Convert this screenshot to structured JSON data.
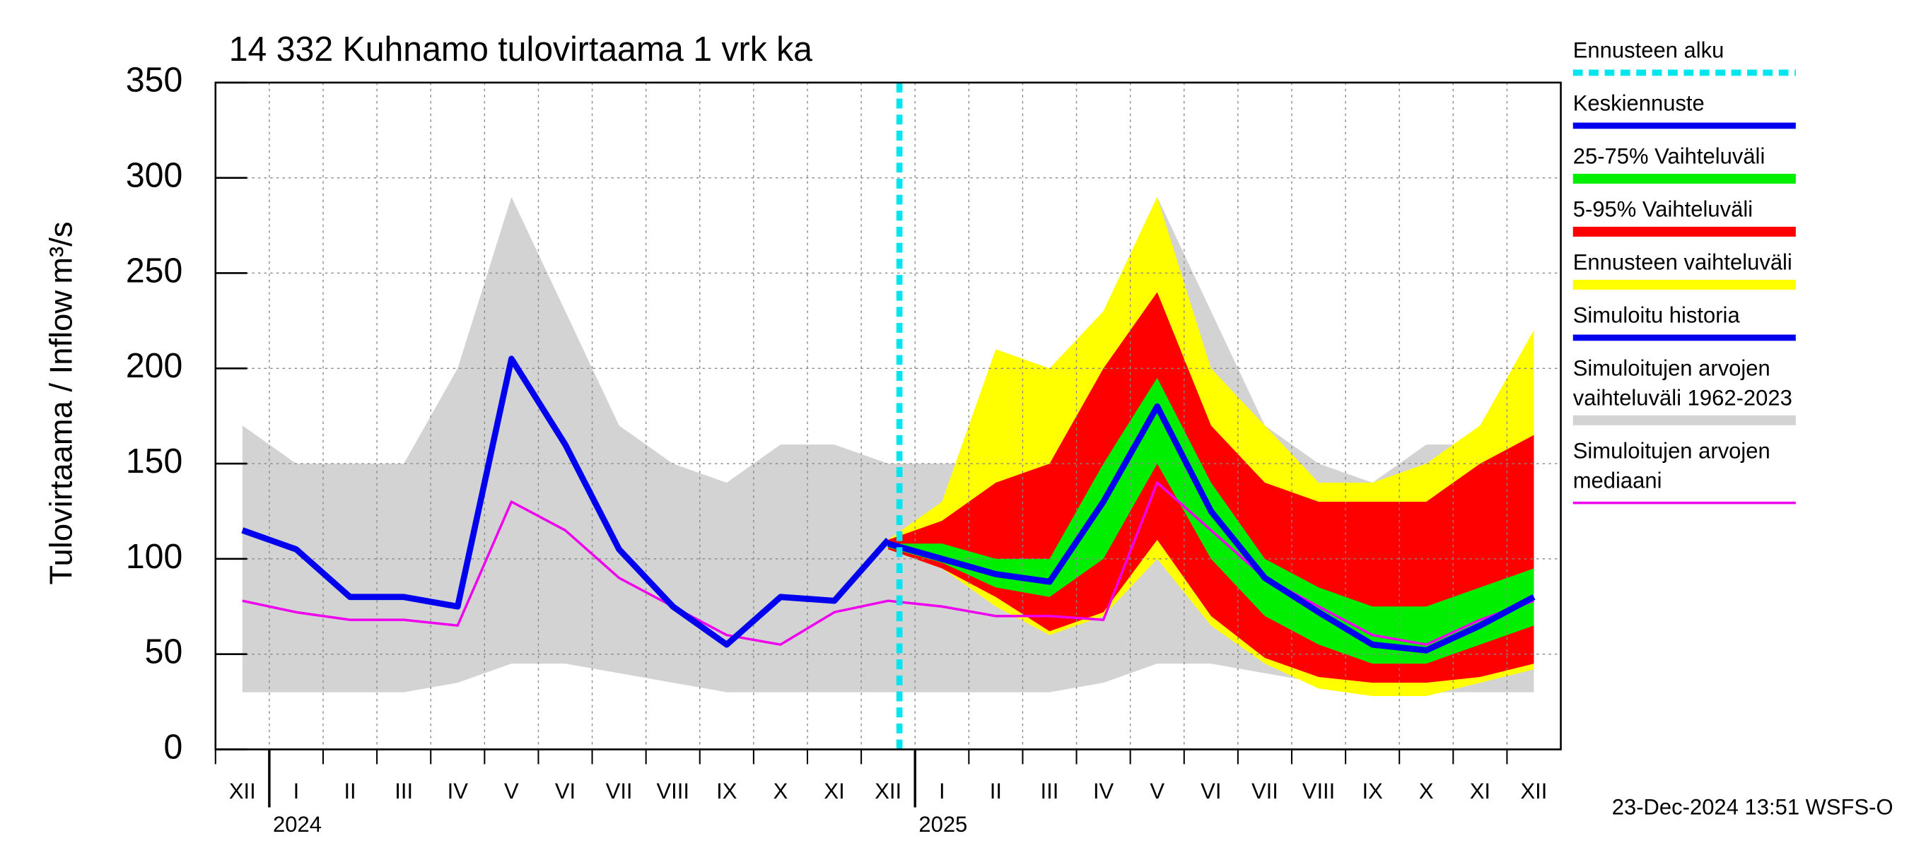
{
  "chart_data": {
    "type": "line",
    "title": "14 332 Kuhnamo tulovirtaama 1 vrk ka",
    "y_label": "Tulovirtaama / Inflow",
    "y_unit": "m³/s",
    "footer": "23-Dec-2024 13:51 WSFS-O",
    "x": [
      "2023-12",
      "2024-01",
      "2024-02",
      "2024-03",
      "2024-04",
      "2024-05",
      "2024-06",
      "2024-07",
      "2024-08",
      "2024-09",
      "2024-10",
      "2024-11",
      "2024-12",
      "2025-01",
      "2025-02",
      "2025-03",
      "2025-04",
      "2025-05",
      "2025-06",
      "2025-07",
      "2025-08",
      "2025-09",
      "2025-10",
      "2025-11",
      "2025-12"
    ],
    "month_labels": [
      "XII",
      "I",
      "II",
      "III",
      "IV",
      "V",
      "VI",
      "VII",
      "VIII",
      "IX",
      "X",
      "XI",
      "XII",
      "I",
      "II",
      "III",
      "IV",
      "V",
      "VI",
      "VII",
      "VIII",
      "IX",
      "X",
      "XI",
      "XII"
    ],
    "year_labels": [
      null,
      "2024",
      null,
      null,
      null,
      null,
      null,
      null,
      null,
      null,
      null,
      null,
      null,
      "2025",
      null,
      null,
      null,
      null,
      null,
      null,
      null,
      null,
      null,
      null,
      null
    ],
    "ylim": [
      0,
      350
    ],
    "yticks": [
      0,
      50,
      100,
      150,
      200,
      250,
      300,
      350
    ],
    "grid": true,
    "forecast_start": {
      "name": "Ennusteen alku",
      "date": "2024-12-23",
      "color": "#00e5ee"
    },
    "series": [
      {
        "name": "Keskiennuste",
        "kind": "line",
        "color": "#0000ee",
        "values": [
          null,
          null,
          null,
          null,
          null,
          null,
          null,
          null,
          null,
          null,
          null,
          null,
          108,
          100,
          92,
          88,
          130,
          180,
          125,
          90,
          72,
          55,
          52,
          65,
          80
        ]
      },
      {
        "name": "25-75% Vaihteluväli",
        "kind": "band",
        "color": "#00ee00",
        "low": [
          null,
          null,
          null,
          null,
          null,
          null,
          null,
          null,
          null,
          null,
          null,
          null,
          106,
          98,
          85,
          80,
          100,
          150,
          100,
          70,
          55,
          45,
          45,
          55,
          65
        ],
        "high": [
          null,
          null,
          null,
          null,
          null,
          null,
          null,
          null,
          null,
          null,
          null,
          null,
          108,
          108,
          100,
          100,
          150,
          195,
          140,
          100,
          85,
          75,
          75,
          85,
          95
        ]
      },
      {
        "name": "5-95% Vaihteluväli",
        "kind": "band",
        "color": "#ff0000",
        "low": [
          null,
          null,
          null,
          null,
          null,
          null,
          null,
          null,
          null,
          null,
          null,
          null,
          105,
          95,
          80,
          62,
          72,
          110,
          70,
          48,
          38,
          35,
          35,
          38,
          45
        ],
        "high": [
          null,
          null,
          null,
          null,
          null,
          null,
          null,
          null,
          null,
          null,
          null,
          null,
          110,
          120,
          140,
          150,
          200,
          240,
          170,
          140,
          130,
          130,
          130,
          150,
          165
        ]
      },
      {
        "name": "Ennusteen vaihteluväli",
        "kind": "band",
        "color": "#ffff00",
        "low": [
          null,
          null,
          null,
          null,
          null,
          null,
          null,
          null,
          null,
          null,
          null,
          null,
          105,
          95,
          75,
          60,
          70,
          100,
          65,
          45,
          32,
          28,
          28,
          35,
          42
        ],
        "high": [
          null,
          null,
          null,
          null,
          null,
          null,
          null,
          null,
          null,
          null,
          null,
          null,
          110,
          130,
          210,
          200,
          230,
          290,
          200,
          170,
          140,
          140,
          150,
          170,
          220
        ]
      },
      {
        "name": "Simuloitu historia",
        "kind": "line",
        "color": "#0000ee",
        "values": [
          115,
          105,
          80,
          80,
          75,
          205,
          160,
          105,
          75,
          55,
          80,
          78,
          110,
          null,
          null,
          null,
          null,
          null,
          null,
          null,
          null,
          null,
          null,
          null,
          null
        ]
      },
      {
        "name": [
          "Simuloitujen arvojen",
          "vaihteluväli 1962-2023"
        ],
        "kind": "band",
        "color": "#d3d3d3",
        "low": [
          30,
          30,
          30,
          30,
          35,
          45,
          45,
          40,
          35,
          30,
          30,
          30,
          30,
          30,
          30,
          30,
          35,
          45,
          45,
          40,
          35,
          30,
          30,
          30,
          30
        ],
        "high": [
          170,
          150,
          150,
          150,
          200,
          290,
          230,
          170,
          150,
          140,
          160,
          160,
          150,
          150,
          150,
          150,
          200,
          290,
          230,
          170,
          150,
          140,
          160,
          160,
          150
        ]
      },
      {
        "name": [
          "Simuloitujen arvojen",
          "mediaani"
        ],
        "kind": "line",
        "color": "#ee00ee",
        "values": [
          78,
          72,
          68,
          68,
          65,
          130,
          115,
          90,
          75,
          60,
          55,
          72,
          78,
          75,
          70,
          70,
          68,
          140,
          115,
          90,
          75,
          60,
          55,
          68,
          78
        ]
      }
    ]
  }
}
